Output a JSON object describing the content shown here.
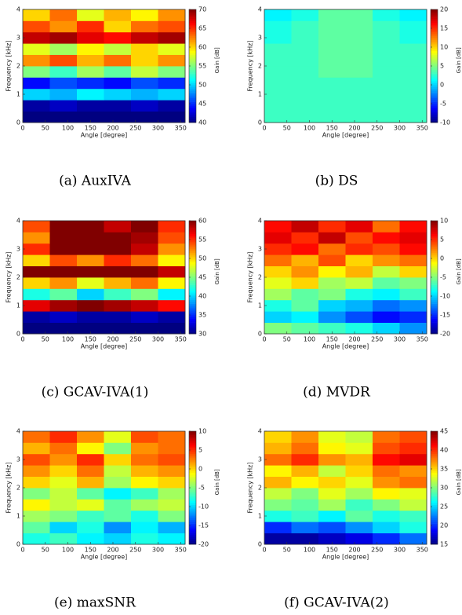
{
  "chart_data": [
    {
      "type": "heatmap",
      "caption": "(a) AuxIVA",
      "xlabel": "Angle [degree]",
      "ylabel": "Frequency [kHz]",
      "colorbar_label": "Gain [dB]",
      "xbins": [
        0,
        60,
        120,
        180,
        240,
        300,
        360
      ],
      "ybins": [
        0,
        0.4,
        0.8,
        1.2,
        1.6,
        2,
        2.4,
        2.8,
        3.2,
        3.6,
        4
      ],
      "values": [
        [
          40,
          40,
          40,
          40,
          40,
          40
        ],
        [
          41,
          42,
          41,
          41,
          42,
          41
        ],
        [
          50,
          49,
          51,
          50,
          49,
          50
        ],
        [
          44,
          46,
          45,
          44,
          46,
          45
        ],
        [
          55,
          53,
          56,
          54,
          57,
          55
        ],
        [
          62,
          64,
          61,
          63,
          60,
          62
        ],
        [
          58,
          56,
          59,
          57,
          60,
          58
        ],
        [
          68,
          69,
          67,
          66,
          68,
          69
        ],
        [
          64,
          62,
          65,
          60,
          63,
          64
        ],
        [
          60,
          63,
          58,
          61,
          59,
          62
        ]
      ],
      "xlim": [
        0,
        360
      ],
      "xticks": [
        0,
        50,
        100,
        150,
        200,
        250,
        300,
        350
      ],
      "ylim": [
        0,
        4
      ],
      "yticks": [
        0,
        1,
        2,
        3,
        4
      ],
      "clim": [
        40,
        70
      ],
      "cticks": [
        40,
        45,
        50,
        55,
        60,
        65,
        70
      ],
      "colormap": "jet"
    },
    {
      "type": "heatmap",
      "caption": "(b) DS",
      "xlabel": "Angle [degree]",
      "ylabel": "Frequency [kHz]",
      "colorbar_label": "Gain [dB]",
      "xbins": [
        0,
        60,
        120,
        180,
        240,
        300,
        360
      ],
      "ybins": [
        0,
        0.4,
        0.8,
        1.2,
        1.6,
        2,
        2.4,
        2.8,
        3.2,
        3.6,
        4
      ],
      "values": [
        [
          3,
          3,
          3,
          3,
          3,
          3
        ],
        [
          3,
          3,
          3,
          3,
          3,
          3
        ],
        [
          3,
          3,
          3,
          3,
          3,
          3
        ],
        [
          3,
          3,
          3,
          3,
          3,
          3
        ],
        [
          3,
          3,
          4,
          4,
          3,
          3
        ],
        [
          3,
          3,
          4,
          4,
          3,
          3
        ],
        [
          3,
          3,
          4,
          4,
          3,
          3
        ],
        [
          2,
          3,
          4,
          4,
          3,
          2
        ],
        [
          2,
          3,
          4,
          4,
          3,
          2
        ],
        [
          1,
          2,
          4,
          4,
          2,
          1
        ]
      ],
      "xlim": [
        0,
        360
      ],
      "xticks": [
        0,
        50,
        100,
        150,
        200,
        250,
        300,
        350
      ],
      "ylim": [
        0,
        4
      ],
      "yticks": [
        0,
        1,
        2,
        3,
        4
      ],
      "clim": [
        -10,
        20
      ],
      "cticks": [
        -10,
        -5,
        0,
        5,
        10,
        15,
        20
      ],
      "colormap": "jet"
    },
    {
      "type": "heatmap",
      "caption": "(c) GCAV-IVA(1)",
      "xlabel": "Angle [degree]",
      "ylabel": "Frequency [kHz]",
      "colorbar_label": "Gain [dB]",
      "xbins": [
        0,
        60,
        120,
        180,
        240,
        300,
        360
      ],
      "ybins": [
        0,
        0.4,
        0.8,
        1.2,
        1.6,
        2,
        2.4,
        2.8,
        3.2,
        3.6,
        4
      ],
      "values": [
        [
          30,
          30,
          30,
          30,
          30,
          30
        ],
        [
          31,
          32,
          31,
          31,
          32,
          31
        ],
        [
          57,
          59,
          60,
          59,
          58,
          56
        ],
        [
          42,
          44,
          40,
          43,
          45,
          41
        ],
        [
          50,
          52,
          48,
          51,
          53,
          49
        ],
        [
          60,
          60,
          60,
          60,
          60,
          58
        ],
        [
          50,
          54,
          52,
          55,
          53,
          49
        ],
        [
          55,
          60,
          60,
          60,
          58,
          52
        ],
        [
          52,
          60,
          60,
          60,
          59,
          54
        ],
        [
          54,
          60,
          60,
          58,
          60,
          55
        ]
      ],
      "xlim": [
        0,
        360
      ],
      "xticks": [
        0,
        50,
        100,
        150,
        200,
        250,
        300,
        350
      ],
      "ylim": [
        0,
        4
      ],
      "yticks": [
        0,
        1,
        2,
        3,
        4
      ],
      "clim": [
        30,
        60
      ],
      "cticks": [
        30,
        35,
        40,
        45,
        50,
        55,
        60
      ],
      "colormap": "jet"
    },
    {
      "type": "heatmap",
      "caption": "(d) MVDR",
      "xlabel": "Angle [degree]",
      "ylabel": "Frequency [kHz]",
      "colorbar_label": "Gain [dB]",
      "xbins": [
        0,
        60,
        120,
        180,
        240,
        300,
        360
      ],
      "ybins": [
        0,
        0.4,
        0.8,
        1.2,
        1.6,
        2,
        2.4,
        2.8,
        3.2,
        3.6,
        4
      ],
      "values": [
        [
          -5,
          -6,
          -7,
          -8,
          -10,
          -12
        ],
        [
          -10,
          -9,
          -12,
          -14,
          -16,
          -15
        ],
        [
          -8,
          -6,
          -10,
          -11,
          -13,
          -12
        ],
        [
          -4,
          -6,
          -5,
          -8,
          -9,
          -7
        ],
        [
          -2,
          0,
          -4,
          -3,
          -6,
          -5
        ],
        [
          0,
          2,
          -1,
          1,
          -3,
          0
        ],
        [
          3,
          1,
          4,
          0,
          2,
          3
        ],
        [
          5,
          6,
          3,
          5,
          4,
          6
        ],
        [
          7,
          5,
          8,
          4,
          6,
          7
        ],
        [
          6,
          8,
          5,
          7,
          3,
          6
        ]
      ],
      "xlim": [
        0,
        360
      ],
      "xticks": [
        0,
        50,
        100,
        150,
        200,
        250,
        300,
        350
      ],
      "ylim": [
        0,
        4
      ],
      "yticks": [
        0,
        1,
        2,
        3,
        4
      ],
      "clim": [
        -20,
        10
      ],
      "cticks": [
        -20,
        -15,
        -10,
        -5,
        0,
        5,
        10
      ],
      "colormap": "jet"
    },
    {
      "type": "heatmap",
      "caption": "(e) maxSNR",
      "xlabel": "Angle [degree]",
      "ylabel": "Frequency [kHz]",
      "colorbar_label": "Gain [dB]",
      "xbins": [
        0,
        60,
        120,
        180,
        240,
        300,
        360
      ],
      "ybins": [
        0,
        0.4,
        0.8,
        1.2,
        1.6,
        2,
        2.4,
        2.8,
        3.2,
        3.6,
        4
      ],
      "values": [
        [
          -8,
          -7,
          -9,
          -10,
          -8,
          -9
        ],
        [
          -6,
          -10,
          -8,
          -12,
          -9,
          -11
        ],
        [
          -4,
          -5,
          -7,
          -6,
          -8,
          -5
        ],
        [
          -1,
          -3,
          -2,
          -6,
          -4,
          -3
        ],
        [
          -5,
          -3,
          -6,
          -9,
          -7,
          -4
        ],
        [
          0,
          -2,
          1,
          -4,
          -1,
          0
        ],
        [
          2,
          0,
          3,
          -3,
          1,
          2
        ],
        [
          4,
          2,
          5,
          0,
          3,
          4
        ],
        [
          1,
          3,
          -1,
          -5,
          2,
          3
        ],
        [
          3,
          5,
          2,
          -2,
          4,
          3
        ]
      ],
      "xlim": [
        0,
        360
      ],
      "xticks": [
        0,
        50,
        100,
        150,
        200,
        250,
        300,
        350
      ],
      "ylim": [
        0,
        4
      ],
      "yticks": [
        0,
        1,
        2,
        3,
        4
      ],
      "clim": [
        -20,
        10
      ],
      "cticks": [
        -20,
        -15,
        -10,
        -5,
        0,
        5,
        10
      ],
      "colormap": "jet"
    },
    {
      "type": "heatmap",
      "caption": "(f) GCAV-IVA(2)",
      "xlabel": "Angle [degree]",
      "ylabel": "Frequency [kHz]",
      "colorbar_label": "Gain [dB]",
      "xbins": [
        0,
        60,
        120,
        180,
        240,
        300,
        360
      ],
      "ybins": [
        0,
        0.4,
        0.8,
        1.2,
        1.6,
        2,
        2.4,
        2.8,
        3.2,
        3.6,
        4
      ],
      "values": [
        [
          16,
          16,
          17,
          18,
          20,
          22
        ],
        [
          20,
          22,
          21,
          23,
          25,
          27
        ],
        [
          27,
          28,
          26,
          29,
          27,
          28
        ],
        [
          30,
          29,
          31,
          28,
          30,
          32
        ],
        [
          32,
          30,
          33,
          31,
          34,
          33
        ],
        [
          36,
          34,
          35,
          33,
          37,
          38
        ],
        [
          34,
          36,
          32,
          35,
          38,
          37
        ],
        [
          38,
          40,
          37,
          36,
          41,
          42
        ],
        [
          36,
          38,
          34,
          33,
          39,
          40
        ],
        [
          35,
          37,
          33,
          32,
          38,
          39
        ]
      ],
      "xlim": [
        0,
        360
      ],
      "xticks": [
        0,
        50,
        100,
        150,
        200,
        250,
        300,
        350
      ],
      "ylim": [
        0,
        4
      ],
      "yticks": [
        0,
        1,
        2,
        3,
        4
      ],
      "clim": [
        15,
        45
      ],
      "cticks": [
        15,
        20,
        25,
        30,
        35,
        40,
        45
      ],
      "colormap": "jet"
    }
  ]
}
